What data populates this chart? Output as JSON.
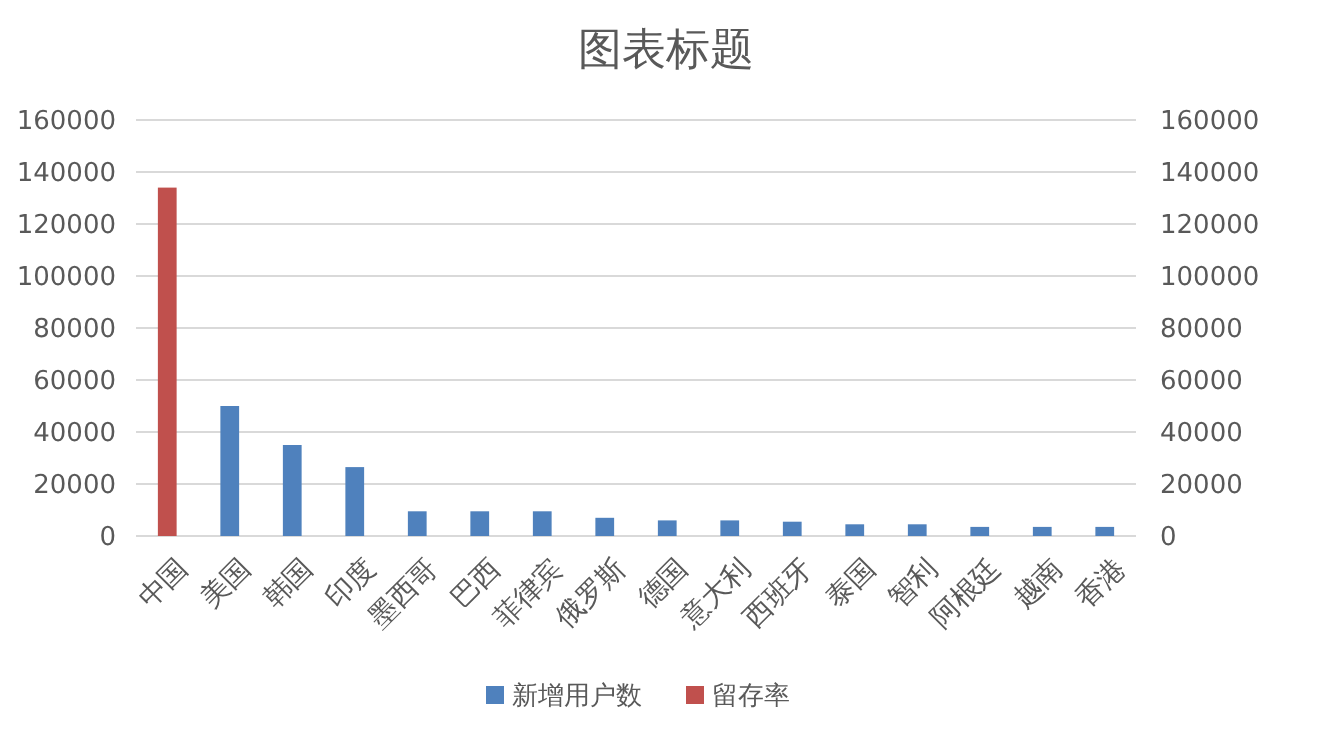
{
  "chart_data": {
    "type": "bar",
    "title": "图表标题",
    "categories": [
      "中国",
      "美国",
      "韩国",
      "印度",
      "墨西哥",
      "巴西",
      "菲律宾",
      "俄罗斯",
      "德国",
      "意大利",
      "西班牙",
      "泰国",
      "智利",
      "阿根廷",
      "越南",
      "香港"
    ],
    "series": [
      {
        "name": "新增用户数",
        "color": "#4f81bd",
        "values": [
          null,
          50000,
          35000,
          26500,
          9500,
          9500,
          9500,
          7000,
          6000,
          6000,
          5500,
          4500,
          4500,
          3500,
          3500,
          3500
        ]
      },
      {
        "name": "留存率",
        "color": "#c0504d",
        "values": [
          134000,
          null,
          null,
          null,
          null,
          null,
          null,
          null,
          null,
          null,
          null,
          null,
          null,
          null,
          null,
          null
        ]
      }
    ],
    "ylim": [
      0,
      160000
    ],
    "yticks": [
      0,
      20000,
      40000,
      60000,
      80000,
      100000,
      120000,
      140000,
      160000
    ],
    "y2lim": [
      0,
      160000
    ],
    "y2ticks": [
      0,
      20000,
      40000,
      60000,
      80000,
      100000,
      120000,
      140000,
      160000
    ],
    "grid": "y",
    "legend": "bottom"
  }
}
